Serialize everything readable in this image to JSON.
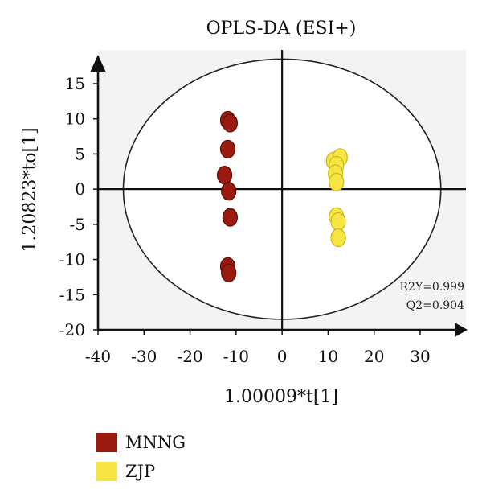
{
  "chart_data": {
    "type": "scatter",
    "title": "OPLS-DA (ESI+)",
    "xlabel": "1.00009*t[1]",
    "ylabel": "1.20823*to[1]",
    "xlim": [
      -40,
      40
    ],
    "ylim": [
      -20,
      20
    ],
    "xticks": [
      -40,
      -30,
      -20,
      -10,
      0,
      10,
      20,
      30
    ],
    "yticks": [
      -20,
      -15,
      -10,
      -5,
      0,
      5,
      10,
      15
    ],
    "grid": false,
    "ellipse": {
      "cx": 0,
      "cy": 0,
      "rx": 34.5,
      "ry": 18.5
    },
    "stats": [
      "R2Y=0.999",
      "Q2=0.904"
    ],
    "legend_position": "bottom-left",
    "series": [
      {
        "name": "MNNG",
        "color": "#9b1a10",
        "x": [
          -11.8,
          -11.3,
          -11.8,
          -12.5,
          -11.6,
          -11.3,
          -11.8,
          -11.6
        ],
        "y": [
          9.8,
          9.4,
          5.7,
          2.0,
          -0.3,
          -4.0,
          -11.0,
          -11.9
        ]
      },
      {
        "name": "ZJP",
        "color": "#f6e542",
        "x": [
          11.2,
          12.6,
          11.8,
          11.6,
          11.8,
          11.8,
          12.2,
          12.2
        ],
        "y": [
          4.0,
          4.5,
          3.4,
          2.2,
          1.0,
          -3.9,
          -4.6,
          -6.9
        ]
      }
    ]
  }
}
